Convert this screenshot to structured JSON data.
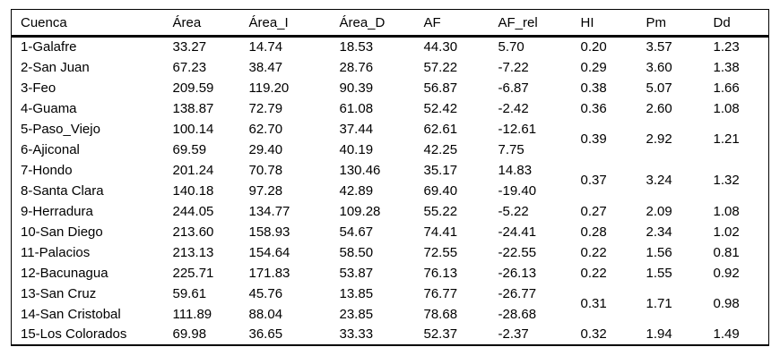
{
  "table": {
    "columns": [
      "Cuenca",
      "Área",
      "Área_I",
      "Área_D",
      "AF",
      "AF_rel",
      "HI",
      "Pm",
      "Dd"
    ],
    "rows": [
      [
        "1-Galafre",
        "33.27",
        "14.74",
        "18.53",
        "44.30",
        "5.70",
        "0.20",
        "3.57",
        "1.23"
      ],
      [
        "2-San Juan",
        "67.23",
        "38.47",
        "28.76",
        "57.22",
        "-7.22",
        "0.29",
        "3.60",
        "1.38"
      ],
      [
        "3-Feo",
        "209.59",
        "119.20",
        "90.39",
        "56.87",
        "-6.87",
        "0.38",
        "5.07",
        "1.66"
      ],
      [
        "4-Guama",
        "138.87",
        "72.79",
        "61.08",
        "52.42",
        "-2.42",
        "0.36",
        "2.60",
        "1.08"
      ],
      [
        "5-Paso_Viejo",
        "100.14",
        "62.70",
        "37.44",
        "62.61",
        "-12.61",
        {
          "text": "0.39",
          "rowspan": 2
        },
        {
          "text": "2.92",
          "rowspan": 2
        },
        {
          "text": "1.21",
          "rowspan": 2
        }
      ],
      [
        "6-Ajiconal",
        "69.59",
        "29.40",
        "40.19",
        "42.25",
        "7.75"
      ],
      [
        "7-Hondo",
        "201.24",
        "70.78",
        "130.46",
        "35.17",
        "14.83",
        {
          "text": "0.37",
          "rowspan": 2
        },
        {
          "text": "3.24",
          "rowspan": 2
        },
        {
          "text": "1.32",
          "rowspan": 2
        }
      ],
      [
        "8-Santa Clara",
        "140.18",
        "97.28",
        "42.89",
        "69.40",
        "-19.40"
      ],
      [
        "9-Herradura",
        "244.05",
        "134.77",
        "109.28",
        "55.22",
        "-5.22",
        "0.27",
        "2.09",
        "1.08"
      ],
      [
        "10-San Diego",
        "213.60",
        "158.93",
        "54.67",
        "74.41",
        "-24.41",
        "0.28",
        "2.34",
        "1.02"
      ],
      [
        "11-Palacios",
        "213.13",
        "154.64",
        "58.50",
        "72.55",
        "-22.55",
        "0.22",
        "1.56",
        "0.81"
      ],
      [
        "12-Bacunagua",
        "225.71",
        "171.83",
        "53.87",
        "76.13",
        "-26.13",
        "0.22",
        "1.55",
        "0.92"
      ],
      [
        "13-San Cruz",
        "59.61",
        "45.76",
        "13.85",
        "76.77",
        "-26.77",
        {
          "text": "0.31",
          "rowspan": 2
        },
        {
          "text": "1.71",
          "rowspan": 2
        },
        {
          "text": "0.98",
          "rowspan": 2
        }
      ],
      [
        "14-San Cristobal",
        "111.89",
        "88.04",
        "23.85",
        "78.68",
        "-28.68"
      ],
      [
        "15-Los Colorados",
        "69.98",
        "36.65",
        "33.33",
        "52.37",
        "-2.37",
        "0.32",
        "1.94",
        "1.49"
      ]
    ]
  },
  "chart_data": {
    "type": "table",
    "columns": [
      "Cuenca",
      "Área",
      "Área_I",
      "Área_D",
      "AF",
      "AF_rel",
      "HI",
      "Pm",
      "Dd"
    ],
    "rows": [
      [
        "1-Galafre",
        33.27,
        14.74,
        18.53,
        44.3,
        5.7,
        0.2,
        3.57,
        1.23
      ],
      [
        "2-San Juan",
        67.23,
        38.47,
        28.76,
        57.22,
        -7.22,
        0.29,
        3.6,
        1.38
      ],
      [
        "3-Feo",
        209.59,
        119.2,
        90.39,
        56.87,
        -6.87,
        0.38,
        5.07,
        1.66
      ],
      [
        "4-Guama",
        138.87,
        72.79,
        61.08,
        52.42,
        -2.42,
        0.36,
        2.6,
        1.08
      ],
      [
        "5-Paso_Viejo",
        100.14,
        62.7,
        37.44,
        62.61,
        -12.61,
        0.39,
        2.92,
        1.21
      ],
      [
        "6-Ajiconal",
        69.59,
        29.4,
        40.19,
        42.25,
        7.75,
        0.39,
        2.92,
        1.21
      ],
      [
        "7-Hondo",
        201.24,
        70.78,
        130.46,
        35.17,
        14.83,
        0.37,
        3.24,
        1.32
      ],
      [
        "8-Santa Clara",
        140.18,
        97.28,
        42.89,
        69.4,
        -19.4,
        0.37,
        3.24,
        1.32
      ],
      [
        "9-Herradura",
        244.05,
        134.77,
        109.28,
        55.22,
        -5.22,
        0.27,
        2.09,
        1.08
      ],
      [
        "10-San Diego",
        213.6,
        158.93,
        54.67,
        74.41,
        -24.41,
        0.28,
        2.34,
        1.02
      ],
      [
        "11-Palacios",
        213.13,
        154.64,
        58.5,
        72.55,
        -22.55,
        0.22,
        1.56,
        0.81
      ],
      [
        "12-Bacunagua",
        225.71,
        171.83,
        53.87,
        76.13,
        -26.13,
        0.22,
        1.55,
        0.92
      ],
      [
        "13-San Cruz",
        59.61,
        45.76,
        13.85,
        76.77,
        -26.77,
        0.31,
        1.71,
        0.98
      ],
      [
        "14-San Cristobal",
        111.89,
        88.04,
        23.85,
        78.68,
        -28.68,
        0.31,
        1.71,
        0.98
      ],
      [
        "15-Los Colorados",
        69.98,
        36.65,
        33.33,
        52.37,
        -2.37,
        0.32,
        1.94,
        1.49
      ]
    ],
    "merged_hi_pm_dd_row_pairs": [
      [
        5,
        6
      ],
      [
        7,
        8
      ],
      [
        13,
        14
      ]
    ]
  }
}
